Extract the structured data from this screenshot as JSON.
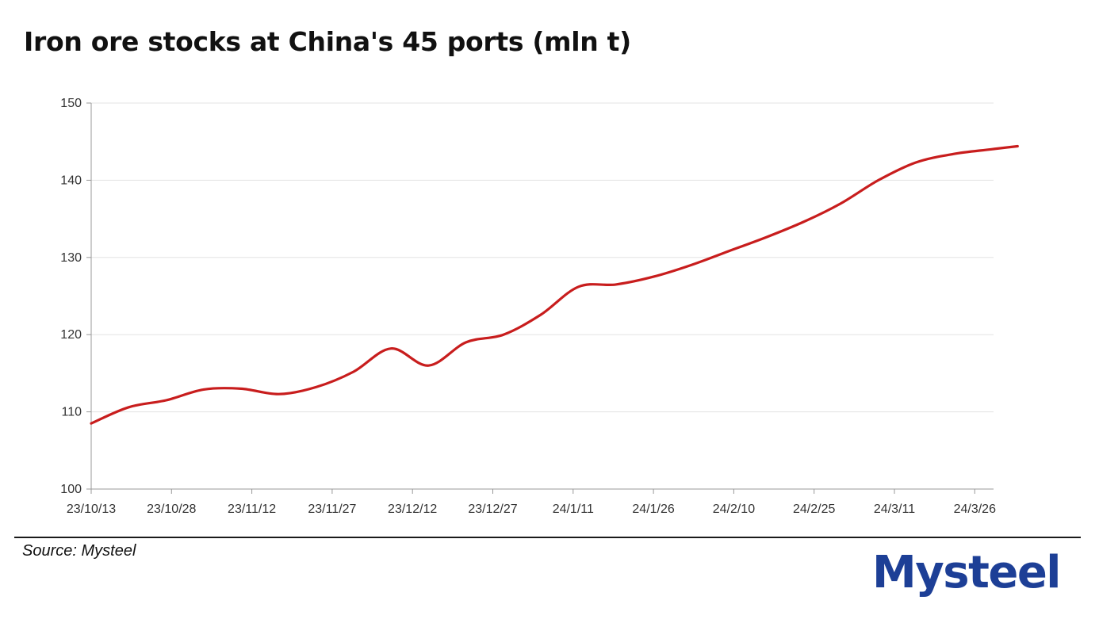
{
  "header": {
    "title": "Iron ore stocks at China's 45 ports (mln t)"
  },
  "footer": {
    "source": "Source: Mysteel",
    "logo_text": "Mysteel"
  },
  "colors": {
    "line": "#c81d1d",
    "logo": "#1d3f96",
    "logo_accent": "#d4252b",
    "grid": "#e3e3e3",
    "axis": "#999999"
  },
  "chart_data": {
    "type": "line",
    "title": "Iron ore stocks at China's 45 ports (mln t)",
    "xlabel": "",
    "ylabel": "",
    "ylim": [
      100,
      150
    ],
    "yticks": [
      100,
      110,
      120,
      130,
      140,
      150
    ],
    "xticks": [
      "23/10/13",
      "23/10/28",
      "23/11/12",
      "23/11/27",
      "23/12/12",
      "23/12/27",
      "24/1/11",
      "24/1/26",
      "24/2/10",
      "24/2/25",
      "24/3/11",
      "24/3/26"
    ],
    "grid": true,
    "legend": "none",
    "series": [
      {
        "name": "",
        "color": "#c81d1d",
        "points": [
          [
            "2023-10-13",
            108.5
          ],
          [
            "2023-10-20",
            110.6
          ],
          [
            "2023-10-27",
            111.5
          ],
          [
            "2023-11-03",
            112.9
          ],
          [
            "2023-11-10",
            113.0
          ],
          [
            "2023-11-17",
            112.3
          ],
          [
            "2023-11-24",
            113.2
          ],
          [
            "2023-12-01",
            115.2
          ],
          [
            "2023-12-08",
            118.2
          ],
          [
            "2023-12-15",
            116.0
          ],
          [
            "2023-12-22",
            119.0
          ],
          [
            "2023-12-29",
            120.0
          ],
          [
            "2024-01-05",
            122.6
          ],
          [
            "2024-01-12",
            126.2
          ],
          [
            "2024-01-19",
            126.5
          ],
          [
            "2024-01-26",
            127.5
          ],
          [
            "2024-02-02",
            129.0
          ],
          [
            "2024-02-09",
            130.8
          ],
          [
            "2024-02-16",
            132.6
          ],
          [
            "2024-02-23",
            134.6
          ],
          [
            "2024-03-01",
            137.0
          ],
          [
            "2024-03-08",
            140.0
          ],
          [
            "2024-03-15",
            142.3
          ],
          [
            "2024-03-22",
            143.4
          ],
          [
            "2024-03-29",
            144.0
          ],
          [
            "2024-04-03",
            144.4
          ]
        ]
      }
    ]
  }
}
